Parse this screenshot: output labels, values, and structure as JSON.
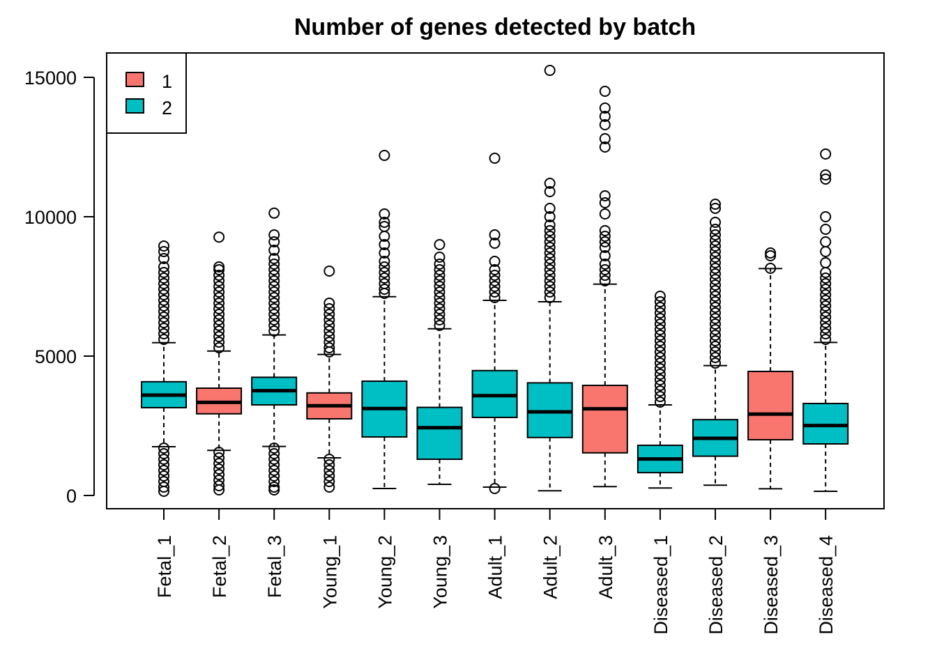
{
  "chart_data": {
    "type": "boxplot",
    "title": "Number of genes detected by batch",
    "xlabel": "",
    "ylabel": "",
    "ylim": [
      -600,
      15900
    ],
    "yticks": [
      0,
      5000,
      10000,
      15000
    ],
    "ytick_labels": [
      "0",
      "5000",
      "10000",
      "15000"
    ],
    "grid": false,
    "legend": {
      "placement": "top-left",
      "entries": [
        {
          "label": "1",
          "color": "#F8766D"
        },
        {
          "label": "2",
          "color": "#00BFC4"
        }
      ]
    },
    "categories": [
      "Fetal_1",
      "Fetal_2",
      "Fetal_3",
      "Young_1",
      "Young_2",
      "Young_3",
      "Adult_1",
      "Adult_2",
      "Adult_3",
      "Diseased_1",
      "Diseased_2",
      "Diseased_3",
      "Diseased_4"
    ],
    "boxes": [
      {
        "name": "Fetal_1",
        "group": "2",
        "whisker_low": 1750,
        "q1": 3150,
        "median": 3600,
        "q3": 4080,
        "whisker_high": 5480,
        "outliers_high": [
          5600,
          5800,
          6000,
          6200,
          6400,
          6600,
          6800,
          7000,
          7200,
          7400,
          7600,
          7800,
          8000,
          8200,
          8500,
          8750,
          8950
        ],
        "outliers_low": [
          1700,
          1500,
          1300,
          1100,
          900,
          700,
          500,
          300,
          150
        ]
      },
      {
        "name": "Fetal_2",
        "group": "1",
        "whisker_low": 1620,
        "q1": 2930,
        "median": 3340,
        "q3": 3850,
        "whisker_high": 5180,
        "outliers_high": [
          5300,
          5500,
          5700,
          5900,
          6100,
          6300,
          6500,
          6700,
          6900,
          7100,
          7300,
          7500,
          7700,
          7900,
          8100,
          8200,
          9270
        ],
        "outliers_low": [
          1550,
          1350,
          1150,
          950,
          750,
          550,
          350,
          200
        ]
      },
      {
        "name": "Fetal_3",
        "group": "2",
        "whisker_low": 1760,
        "q1": 3250,
        "median": 3760,
        "q3": 4240,
        "whisker_high": 5760,
        "outliers_high": [
          5900,
          6100,
          6300,
          6500,
          6700,
          6900,
          7100,
          7300,
          7500,
          7700,
          7900,
          8100,
          8300,
          8500,
          8800,
          9100,
          9350,
          10130
        ],
        "outliers_low": [
          1700,
          1500,
          1300,
          1100,
          900,
          700,
          500,
          300,
          200
        ]
      },
      {
        "name": "Young_1",
        "group": "1",
        "whisker_low": 1350,
        "q1": 2750,
        "median": 3220,
        "q3": 3680,
        "whisker_high": 5060,
        "outliers_high": [
          5150,
          5300,
          5500,
          5700,
          5900,
          6100,
          6300,
          6500,
          6700,
          6900,
          8050
        ],
        "outliers_low": [
          1300,
          1100,
          900,
          700,
          500,
          300
        ]
      },
      {
        "name": "Young_2",
        "group": "2",
        "whisker_low": 250,
        "q1": 2100,
        "median": 3120,
        "q3": 4100,
        "whisker_high": 7130,
        "outliers_high": [
          7250,
          7400,
          7600,
          7800,
          8000,
          8200,
          8400,
          8700,
          9000,
          9300,
          9650,
          9800,
          10100,
          12200
        ],
        "outliers_low": []
      },
      {
        "name": "Young_3",
        "group": "2",
        "whisker_low": 400,
        "q1": 1300,
        "median": 2430,
        "q3": 3160,
        "whisker_high": 5980,
        "outliers_high": [
          6100,
          6300,
          6500,
          6700,
          6900,
          7100,
          7300,
          7500,
          7700,
          7900,
          8100,
          8300,
          8550,
          9000
        ],
        "outliers_low": []
      },
      {
        "name": "Adult_1",
        "group": "2",
        "whisker_low": 300,
        "q1": 2800,
        "median": 3580,
        "q3": 4480,
        "whisker_high": 7000,
        "outliers_high": [
          7100,
          7300,
          7500,
          7700,
          7900,
          8100,
          8400,
          9050,
          9350,
          12100
        ],
        "outliers_low": [
          250
        ]
      },
      {
        "name": "Adult_2",
        "group": "2",
        "whisker_low": 170,
        "q1": 2080,
        "median": 3000,
        "q3": 4040,
        "whisker_high": 6950,
        "outliers_high": [
          7100,
          7300,
          7500,
          7700,
          7900,
          8100,
          8300,
          8500,
          8700,
          8900,
          9100,
          9300,
          9500,
          9700,
          10000,
          10300,
          10900,
          11200,
          15250
        ],
        "outliers_low": []
      },
      {
        "name": "Adult_3",
        "group": "1",
        "whisker_low": 320,
        "q1": 1530,
        "median": 3110,
        "q3": 3950,
        "whisker_high": 7580,
        "outliers_high": [
          7700,
          7900,
          8100,
          8300,
          8600,
          8900,
          9100,
          9300,
          9500,
          10100,
          10500,
          10750,
          12500,
          12800,
          13300,
          13600,
          13900,
          14500
        ],
        "outliers_low": []
      },
      {
        "name": "Diseased_1",
        "group": "2",
        "whisker_low": 270,
        "q1": 820,
        "median": 1310,
        "q3": 1800,
        "whisker_high": 3250,
        "outliers_high": [
          3350,
          3550,
          3750,
          3950,
          4150,
          4350,
          4550,
          4750,
          4950,
          5150,
          5350,
          5550,
          5750,
          5950,
          6150,
          6350,
          6550,
          6750,
          6950,
          7150
        ],
        "outliers_low": []
      },
      {
        "name": "Diseased_2",
        "group": "2",
        "whisker_low": 370,
        "q1": 1410,
        "median": 2050,
        "q3": 2720,
        "whisker_high": 4660,
        "outliers_high": [
          4750,
          4950,
          5150,
          5350,
          5550,
          5750,
          5950,
          6150,
          6350,
          6550,
          6750,
          6950,
          7150,
          7350,
          7550,
          7750,
          7950,
          8150,
          8350,
          8550,
          8750,
          8950,
          9150,
          9350,
          9550,
          9800,
          10300,
          10450
        ],
        "outliers_low": []
      },
      {
        "name": "Diseased_3",
        "group": "1",
        "whisker_low": 240,
        "q1": 2000,
        "median": 2920,
        "q3": 4450,
        "whisker_high": 8140,
        "outliers_high": [
          8150,
          8600,
          8700
        ],
        "outliers_low": []
      },
      {
        "name": "Diseased_4",
        "group": "2",
        "whisker_low": 150,
        "q1": 1850,
        "median": 2510,
        "q3": 3300,
        "whisker_high": 5490,
        "outliers_high": [
          5600,
          5800,
          6000,
          6200,
          6400,
          6600,
          6800,
          7000,
          7200,
          7400,
          7600,
          7800,
          8000,
          8350,
          8750,
          9100,
          9550,
          10000,
          11350,
          11500,
          12250
        ],
        "outliers_low": []
      }
    ]
  }
}
